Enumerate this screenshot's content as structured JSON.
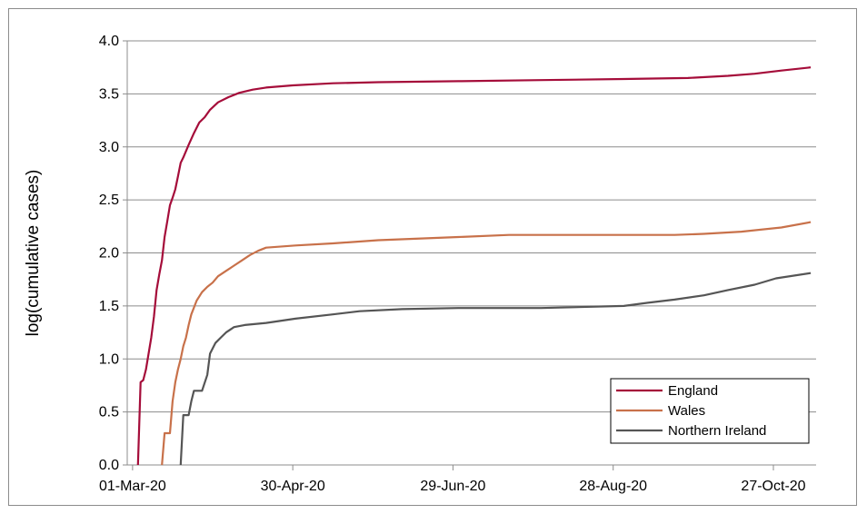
{
  "chart_data": {
    "type": "line",
    "title": "",
    "xlabel": "",
    "ylabel": "log(cumulative cases)",
    "x_axis": {
      "type": "date",
      "range": [
        "2020-02-28",
        "2020-11-12"
      ],
      "ticks": [
        {
          "date": "2020-03-01",
          "label": "01-Mar-20"
        },
        {
          "date": "2020-04-30",
          "label": "30-Apr-20"
        },
        {
          "date": "2020-06-29",
          "label": "29-Jun-20"
        },
        {
          "date": "2020-08-28",
          "label": "28-Aug-20"
        },
        {
          "date": "2020-10-27",
          "label": "27-Oct-20"
        }
      ]
    },
    "y_axis": {
      "range": [
        0,
        4.0
      ],
      "ticks": [
        "0.0",
        "0.5",
        "1.0",
        "1.5",
        "2.0",
        "2.5",
        "3.0",
        "3.5",
        "4.0"
      ]
    },
    "grid": {
      "horizontal": true,
      "vertical": false
    },
    "legend": {
      "position": "bottom-right"
    },
    "series": [
      {
        "name": "England",
        "color": "#a50d3a",
        "points": [
          [
            "2020-03-03",
            0
          ],
          [
            "2020-03-04",
            0.78
          ],
          [
            "2020-03-05",
            0.8
          ],
          [
            "2020-03-06",
            0.9
          ],
          [
            "2020-03-07",
            1.05
          ],
          [
            "2020-03-08",
            1.2
          ],
          [
            "2020-03-09",
            1.4
          ],
          [
            "2020-03-10",
            1.65
          ],
          [
            "2020-03-11",
            1.8
          ],
          [
            "2020-03-12",
            1.93
          ],
          [
            "2020-03-13",
            2.15
          ],
          [
            "2020-03-14",
            2.3
          ],
          [
            "2020-03-15",
            2.45
          ],
          [
            "2020-03-16",
            2.52
          ],
          [
            "2020-03-17",
            2.6
          ],
          [
            "2020-03-18",
            2.72
          ],
          [
            "2020-03-19",
            2.85
          ],
          [
            "2020-03-20",
            2.9
          ],
          [
            "2020-03-22",
            3.02
          ],
          [
            "2020-03-24",
            3.13
          ],
          [
            "2020-03-26",
            3.23
          ],
          [
            "2020-03-28",
            3.28
          ],
          [
            "2020-03-30",
            3.35
          ],
          [
            "2020-04-02",
            3.42
          ],
          [
            "2020-04-06",
            3.47
          ],
          [
            "2020-04-10",
            3.51
          ],
          [
            "2020-04-15",
            3.54
          ],
          [
            "2020-04-20",
            3.56
          ],
          [
            "2020-04-30",
            3.58
          ],
          [
            "2020-05-15",
            3.6
          ],
          [
            "2020-06-01",
            3.61
          ],
          [
            "2020-07-01",
            3.62
          ],
          [
            "2020-08-01",
            3.63
          ],
          [
            "2020-09-01",
            3.64
          ],
          [
            "2020-09-25",
            3.65
          ],
          [
            "2020-10-10",
            3.67
          ],
          [
            "2020-10-20",
            3.69
          ],
          [
            "2020-10-30",
            3.72
          ],
          [
            "2020-11-10",
            3.75
          ]
        ]
      },
      {
        "name": "Wales",
        "color": "#c8714a",
        "points": [
          [
            "2020-03-12",
            0
          ],
          [
            "2020-03-13",
            0.3
          ],
          [
            "2020-03-15",
            0.3
          ],
          [
            "2020-03-16",
            0.6
          ],
          [
            "2020-03-17",
            0.78
          ],
          [
            "2020-03-18",
            0.9
          ],
          [
            "2020-03-19",
            1.0
          ],
          [
            "2020-03-20",
            1.12
          ],
          [
            "2020-03-21",
            1.2
          ],
          [
            "2020-03-22",
            1.32
          ],
          [
            "2020-03-23",
            1.42
          ],
          [
            "2020-03-25",
            1.55
          ],
          [
            "2020-03-27",
            1.63
          ],
          [
            "2020-03-29",
            1.68
          ],
          [
            "2020-03-31",
            1.72
          ],
          [
            "2020-04-02",
            1.78
          ],
          [
            "2020-04-05",
            1.83
          ],
          [
            "2020-04-08",
            1.88
          ],
          [
            "2020-04-11",
            1.93
          ],
          [
            "2020-04-14",
            1.98
          ],
          [
            "2020-04-17",
            2.02
          ],
          [
            "2020-04-20",
            2.05
          ],
          [
            "2020-05-01",
            2.07
          ],
          [
            "2020-05-15",
            2.09
          ],
          [
            "2020-06-01",
            2.12
          ],
          [
            "2020-07-01",
            2.15
          ],
          [
            "2020-07-20",
            2.17
          ],
          [
            "2020-08-15",
            2.17
          ],
          [
            "2020-09-20",
            2.17
          ],
          [
            "2020-10-01",
            2.18
          ],
          [
            "2020-10-15",
            2.2
          ],
          [
            "2020-10-30",
            2.24
          ],
          [
            "2020-11-10",
            2.29
          ]
        ]
      },
      {
        "name": "Northern Ireland",
        "color": "#555555",
        "points": [
          [
            "2020-03-19",
            0
          ],
          [
            "2020-03-20",
            0.47
          ],
          [
            "2020-03-22",
            0.47
          ],
          [
            "2020-03-23",
            0.6
          ],
          [
            "2020-03-24",
            0.7
          ],
          [
            "2020-03-27",
            0.7
          ],
          [
            "2020-03-29",
            0.85
          ],
          [
            "2020-03-30",
            1.05
          ],
          [
            "2020-04-01",
            1.15
          ],
          [
            "2020-04-03",
            1.2
          ],
          [
            "2020-04-05",
            1.25
          ],
          [
            "2020-04-08",
            1.3
          ],
          [
            "2020-04-12",
            1.32
          ],
          [
            "2020-04-20",
            1.34
          ],
          [
            "2020-05-01",
            1.38
          ],
          [
            "2020-05-15",
            1.42
          ],
          [
            "2020-05-25",
            1.45
          ],
          [
            "2020-06-10",
            1.47
          ],
          [
            "2020-07-01",
            1.48
          ],
          [
            "2020-08-01",
            1.48
          ],
          [
            "2020-09-01",
            1.5
          ],
          [
            "2020-09-10",
            1.53
          ],
          [
            "2020-09-20",
            1.56
          ],
          [
            "2020-10-01",
            1.6
          ],
          [
            "2020-10-10",
            1.65
          ],
          [
            "2020-10-20",
            1.7
          ],
          [
            "2020-10-28",
            1.76
          ],
          [
            "2020-11-10",
            1.81
          ]
        ]
      }
    ]
  }
}
